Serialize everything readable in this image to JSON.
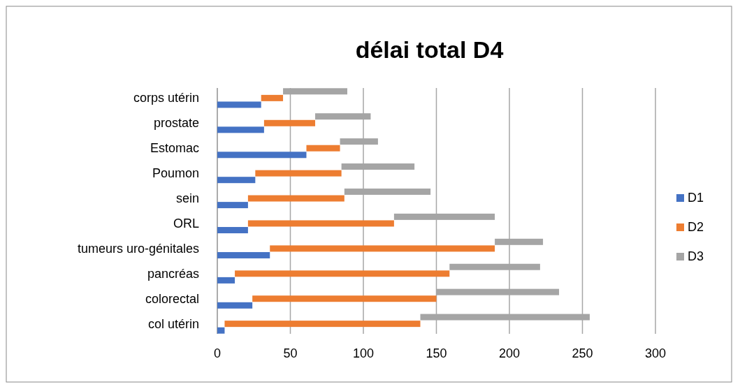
{
  "chart_data": {
    "type": "bar",
    "title": "délai total  D4",
    "orientation": "horizontal",
    "stacked": true,
    "categories": [
      "corps utérin",
      "prostate",
      "Estomac",
      "Poumon",
      "sein ",
      "ORL",
      "tumeurs uro-génitales",
      "pancréas",
      "colorectal",
      "col utérin"
    ],
    "series": [
      {
        "name": "D1",
        "color": "#4472c4",
        "values": [
          30,
          32,
          61,
          26,
          21,
          21,
          36,
          12,
          24,
          5
        ]
      },
      {
        "name": "D2",
        "color": "#ed7d31",
        "values": [
          15,
          35,
          23,
          59,
          66,
          100,
          154,
          147,
          126,
          134
        ]
      },
      {
        "name": "D3",
        "color": "#a5a5a5",
        "values": [
          44,
          38,
          26,
          50,
          59,
          69,
          33,
          62,
          84,
          116
        ]
      }
    ],
    "xlim": [
      0,
      300
    ],
    "xticks": [
      0,
      50,
      100,
      150,
      200,
      250,
      300
    ],
    "grid": "x",
    "legend": "right"
  }
}
